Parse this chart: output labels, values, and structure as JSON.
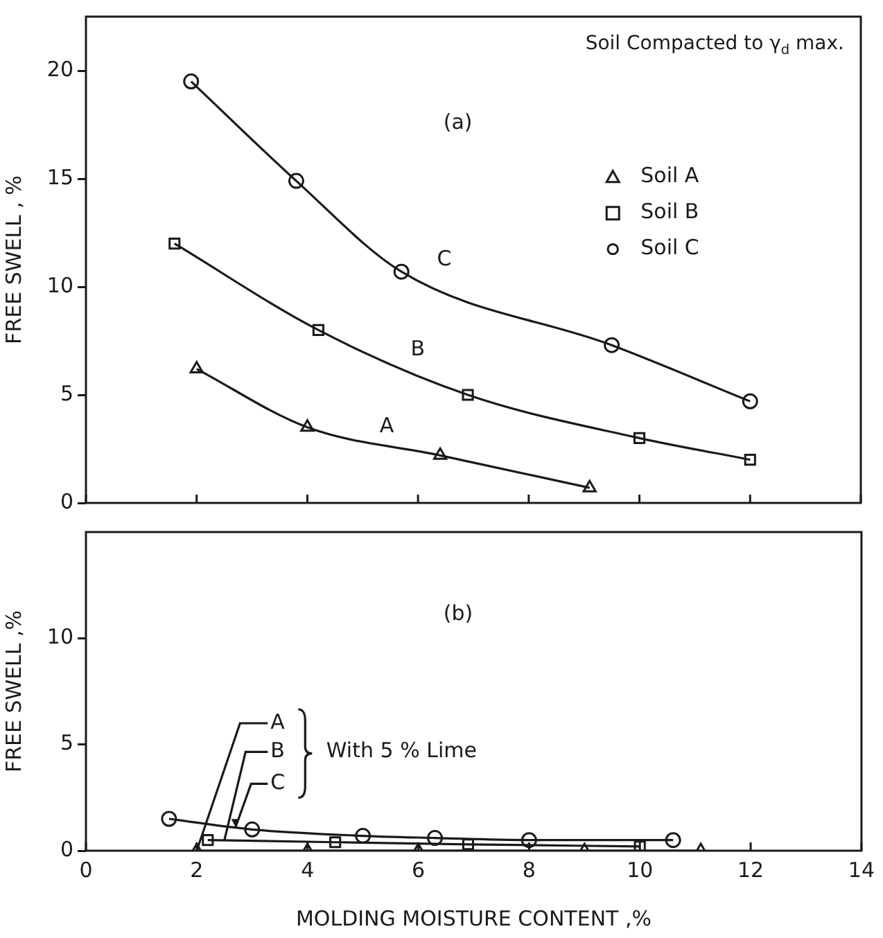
{
  "chart_data": [
    {
      "type": "line",
      "title": "Soil Compacted to γ$_{d}$ max.",
      "ylabel": "FREE SWELL , %",
      "annotations": [
        "(a)",
        "C",
        "B",
        "A"
      ],
      "series": [
        {
          "name": "Soil A",
          "color": "#1a1a1a",
          "marker": "triangle",
          "x": [
            2,
            4,
            6.4,
            9.1
          ],
          "values": [
            6.2,
            3.5,
            2.2,
            0.7
          ]
        },
        {
          "name": "Soil B",
          "color": "#1a1a1a",
          "marker": "square",
          "x": [
            1.6,
            4.2,
            6.9,
            10,
            12
          ],
          "values": [
            12,
            8,
            5,
            3,
            2
          ]
        },
        {
          "name": "Soil C",
          "color": "#1a1a1a",
          "marker": "circle",
          "x": [
            1.9,
            3.8,
            5.7,
            9.5,
            12
          ],
          "values": [
            19.5,
            14.9,
            10.7,
            7.3,
            4.7
          ]
        }
      ],
      "xlim": [
        0,
        14
      ],
      "xticks": [
        0,
        2,
        4,
        6,
        8,
        10,
        12,
        14
      ],
      "ylim": [
        0,
        22.5
      ],
      "yticks": [
        0,
        5,
        10,
        15,
        20
      ],
      "tick_labels": "y",
      "legend": "top right",
      "grid": false,
      "line_style": "solid"
    },
    {
      "type": "line",
      "xlabel": "MOLDING MOISTURE CONTENT ,%",
      "ylabel": "FREE SWELL ,%",
      "annotations": [
        "(b)",
        {
          "text": "A",
          "x": 2,
          "y": 0
        },
        {
          "text": "B",
          "x": 2.5,
          "y": 0.5
        },
        {
          "text": "C",
          "x": 2.7,
          "y": 1.1
        },
        "With 5 % Lime"
      ],
      "series": [
        {
          "color": "#1a1a1a",
          "marker": "triangle",
          "x": [
            2,
            4,
            6,
            9,
            11.1
          ],
          "values": [
            0,
            0,
            0,
            0,
            0
          ]
        },
        {
          "color": "#1a1a1a",
          "marker": "square",
          "x": [
            2.2,
            4.5,
            6.9,
            10
          ],
          "values": [
            0.5,
            0.4,
            0.3,
            0.2
          ]
        },
        {
          "color": "#1a1a1a",
          "marker": "circle",
          "x": [
            1.5,
            3,
            5,
            6.3,
            8,
            10.6
          ],
          "values": [
            1.5,
            1.0,
            0.7,
            0.6,
            0.5,
            0.5
          ]
        }
      ],
      "xlim": [
        0,
        14
      ],
      "xticks": [
        0,
        2,
        4,
        6,
        8,
        10,
        12,
        14
      ],
      "ylim": [
        0,
        15
      ],
      "yticks": [
        0,
        5,
        10
      ],
      "grid": false,
      "line_style": "solid"
    }
  ]
}
